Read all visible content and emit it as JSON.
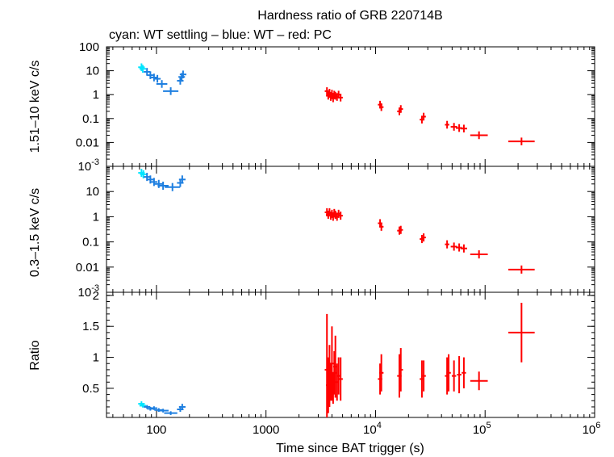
{
  "chart_data": {
    "type": "scatter",
    "title": "Hardness ratio of GRB 220714B",
    "subtitle": "cyan: WT settling – blue: WT – red: PC",
    "xlabel": "Time since BAT trigger (s)",
    "xscale": "log",
    "xlim": [
      35,
      1000000
    ],
    "x_ticks": [
      {
        "value": 100,
        "label": "100"
      },
      {
        "value": 1000,
        "label": "1000"
      },
      {
        "value": 10000,
        "label": "10",
        "exp": "4"
      },
      {
        "value": 100000,
        "label": "10",
        "exp": "5"
      },
      {
        "value": 1000000,
        "label": "10",
        "exp": "6"
      }
    ],
    "colors": {
      "settling": "#00e5ff",
      "wt": "#1e7fe0",
      "pc": "#ff0000"
    },
    "panels": [
      {
        "id": "hard",
        "ylabel": "1.51–10 keV c/s",
        "yscale": "log",
        "ylim": [
          0.001,
          100
        ],
        "y_ticks": [
          {
            "value": 100,
            "label": "100"
          },
          {
            "value": 10,
            "label": "10"
          },
          {
            "value": 1,
            "label": "1"
          },
          {
            "value": 0.1,
            "label": "0.1"
          },
          {
            "value": 0.01,
            "label": "0.01"
          },
          {
            "value": 0.001,
            "label": "10",
            "exp": "-3"
          }
        ],
        "series": [
          {
            "name": "WT settling",
            "color_key": "settling",
            "points": [
              [
                73,
                14,
                0.03
              ],
              [
                75,
                12,
                0.03
              ]
            ]
          },
          {
            "name": "WT",
            "color_key": "wt",
            "points": [
              [
                82,
                9,
                0.03
              ],
              [
                88,
                6.5,
                0.03
              ],
              [
                95,
                5.2,
                0.03
              ],
              [
                102,
                4.6,
                0.03
              ],
              [
                112,
                2.8,
                0.05
              ],
              [
                135,
                1.4,
                0.07
              ],
              [
                165,
                3.8,
                0.03
              ],
              [
                170,
                5.5,
                0.03
              ],
              [
                175,
                7,
                0.03
              ]
            ]
          },
          {
            "name": "PC",
            "color_key": "pc",
            "points": [
              [
                3600,
                1.4,
                0.02
              ],
              [
                3700,
                0.9,
                0.02
              ],
              [
                3800,
                1.2,
                0.02
              ],
              [
                3900,
                0.8,
                0.02
              ],
              [
                4000,
                1.1,
                0.02
              ],
              [
                4100,
                0.7,
                0.02
              ],
              [
                4200,
                1.0,
                0.02
              ],
              [
                4300,
                0.9,
                0.02
              ],
              [
                4450,
                0.8,
                0.02
              ],
              [
                4600,
                1.0,
                0.02
              ],
              [
                4800,
                0.75,
                0.02
              ],
              [
                11000,
                0.38,
                0.02
              ],
              [
                11300,
                0.3,
                0.02
              ],
              [
                16500,
                0.2,
                0.02
              ],
              [
                17000,
                0.25,
                0.02
              ],
              [
                26500,
                0.09,
                0.02
              ],
              [
                27500,
                0.12,
                0.02
              ],
              [
                45000,
                0.055,
                0.02
              ],
              [
                52000,
                0.045,
                0.03
              ],
              [
                58000,
                0.04,
                0.03
              ],
              [
                64000,
                0.038,
                0.03
              ],
              [
                88000,
                0.02,
                0.08
              ],
              [
                215000,
                0.011,
                0.12
              ]
            ]
          }
        ]
      },
      {
        "id": "soft",
        "ylabel": "0.3–1.5 keV c/s",
        "yscale": "log",
        "ylim": [
          0.001,
          100
        ],
        "y_ticks": [
          {
            "value": 10,
            "label": "10"
          },
          {
            "value": 1,
            "label": "1"
          },
          {
            "value": 0.1,
            "label": "0.1"
          },
          {
            "value": 0.01,
            "label": "0.01"
          },
          {
            "value": 0.001,
            "label": "10",
            "exp": "-3"
          }
        ],
        "series": [
          {
            "name": "WT settling",
            "color_key": "settling",
            "points": [
              [
                73,
                55,
                0.03
              ],
              [
                76,
                48,
                0.03
              ]
            ]
          },
          {
            "name": "WT",
            "color_key": "wt",
            "points": [
              [
                82,
                38,
                0.03
              ],
              [
                88,
                30,
                0.03
              ],
              [
                95,
                24,
                0.03
              ],
              [
                105,
                20,
                0.04
              ],
              [
                115,
                17,
                0.05
              ],
              [
                140,
                15,
                0.07
              ],
              [
                165,
                22,
                0.03
              ],
              [
                172,
                30,
                0.03
              ]
            ]
          },
          {
            "name": "PC",
            "color_key": "pc",
            "points": [
              [
                3600,
                1.5,
                0.02
              ],
              [
                3700,
                1.2,
                0.02
              ],
              [
                3800,
                1.5,
                0.02
              ],
              [
                3900,
                1.1,
                0.02
              ],
              [
                4000,
                1.3,
                0.02
              ],
              [
                4100,
                1.0,
                0.02
              ],
              [
                4200,
                1.4,
                0.02
              ],
              [
                4300,
                1.2,
                0.02
              ],
              [
                4450,
                1.0,
                0.02
              ],
              [
                4600,
                1.3,
                0.02
              ],
              [
                4800,
                1.1,
                0.02
              ],
              [
                11000,
                0.55,
                0.02
              ],
              [
                11300,
                0.4,
                0.02
              ],
              [
                16500,
                0.28,
                0.02
              ],
              [
                17000,
                0.3,
                0.02
              ],
              [
                26500,
                0.13,
                0.02
              ],
              [
                27500,
                0.15,
                0.02
              ],
              [
                45000,
                0.08,
                0.02
              ],
              [
                52000,
                0.065,
                0.03
              ],
              [
                58000,
                0.06,
                0.03
              ],
              [
                64000,
                0.055,
                0.03
              ],
              [
                88000,
                0.032,
                0.08
              ],
              [
                215000,
                0.008,
                0.12
              ]
            ]
          }
        ]
      },
      {
        "id": "ratio",
        "ylabel": "Ratio",
        "yscale": "linear",
        "ylim": [
          0.03,
          2.05
        ],
        "y_ticks": [
          {
            "value": 2,
            "label": "2"
          },
          {
            "value": 1.5,
            "label": "1.5"
          },
          {
            "value": 1,
            "label": "1"
          },
          {
            "value": 0.5,
            "label": "0.5"
          }
        ],
        "series": [
          {
            "name": "WT settling",
            "color_key": "settling",
            "points": [
              [
                73,
                0.25,
                0.03,
                0.04
              ],
              [
                75,
                0.22,
                0.03,
                0.03
              ]
            ]
          },
          {
            "name": "WT",
            "color_key": "wt",
            "points": [
              [
                82,
                0.2,
                0.03,
                0.03
              ],
              [
                88,
                0.17,
                0.03,
                0.03
              ],
              [
                95,
                0.18,
                0.03,
                0.03
              ],
              [
                105,
                0.15,
                0.04,
                0.03
              ],
              [
                115,
                0.14,
                0.05,
                0.03
              ],
              [
                135,
                0.1,
                0.06,
                0.03
              ],
              [
                165,
                0.16,
                0.03,
                0.04
              ],
              [
                172,
                0.2,
                0.03,
                0.05
              ]
            ]
          },
          {
            "name": "PC",
            "color_key": "pc",
            "points": [
              [
                3600,
                0.8,
                0.02,
                0.9
              ],
              [
                3700,
                0.55,
                0.02,
                0.45
              ],
              [
                3800,
                0.7,
                0.02,
                0.5
              ],
              [
                3900,
                0.6,
                0.02,
                0.3
              ],
              [
                4000,
                0.9,
                0.02,
                0.6
              ],
              [
                4100,
                0.5,
                0.02,
                0.25
              ],
              [
                4200,
                0.75,
                0.02,
                0.35
              ],
              [
                4300,
                0.85,
                0.02,
                0.5
              ],
              [
                4450,
                0.6,
                0.02,
                0.3
              ],
              [
                4600,
                0.7,
                0.02,
                0.3
              ],
              [
                4800,
                0.65,
                0.02,
                0.35
              ],
              [
                11000,
                0.65,
                0.02,
                0.25
              ],
              [
                11300,
                0.75,
                0.02,
                0.3
              ],
              [
                16500,
                0.7,
                0.02,
                0.35
              ],
              [
                17000,
                0.8,
                0.02,
                0.35
              ],
              [
                26500,
                0.65,
                0.02,
                0.3
              ],
              [
                27500,
                0.7,
                0.02,
                0.25
              ],
              [
                45000,
                0.7,
                0.02,
                0.3
              ],
              [
                46500,
                0.75,
                0.02,
                0.3
              ],
              [
                52000,
                0.7,
                0.02,
                0.25
              ],
              [
                58000,
                0.72,
                0.02,
                0.3
              ],
              [
                64000,
                0.75,
                0.02,
                0.25
              ],
              [
                88000,
                0.62,
                0.08,
                0.15
              ],
              [
                215000,
                1.4,
                0.12,
                0.48
              ]
            ]
          }
        ]
      }
    ]
  }
}
